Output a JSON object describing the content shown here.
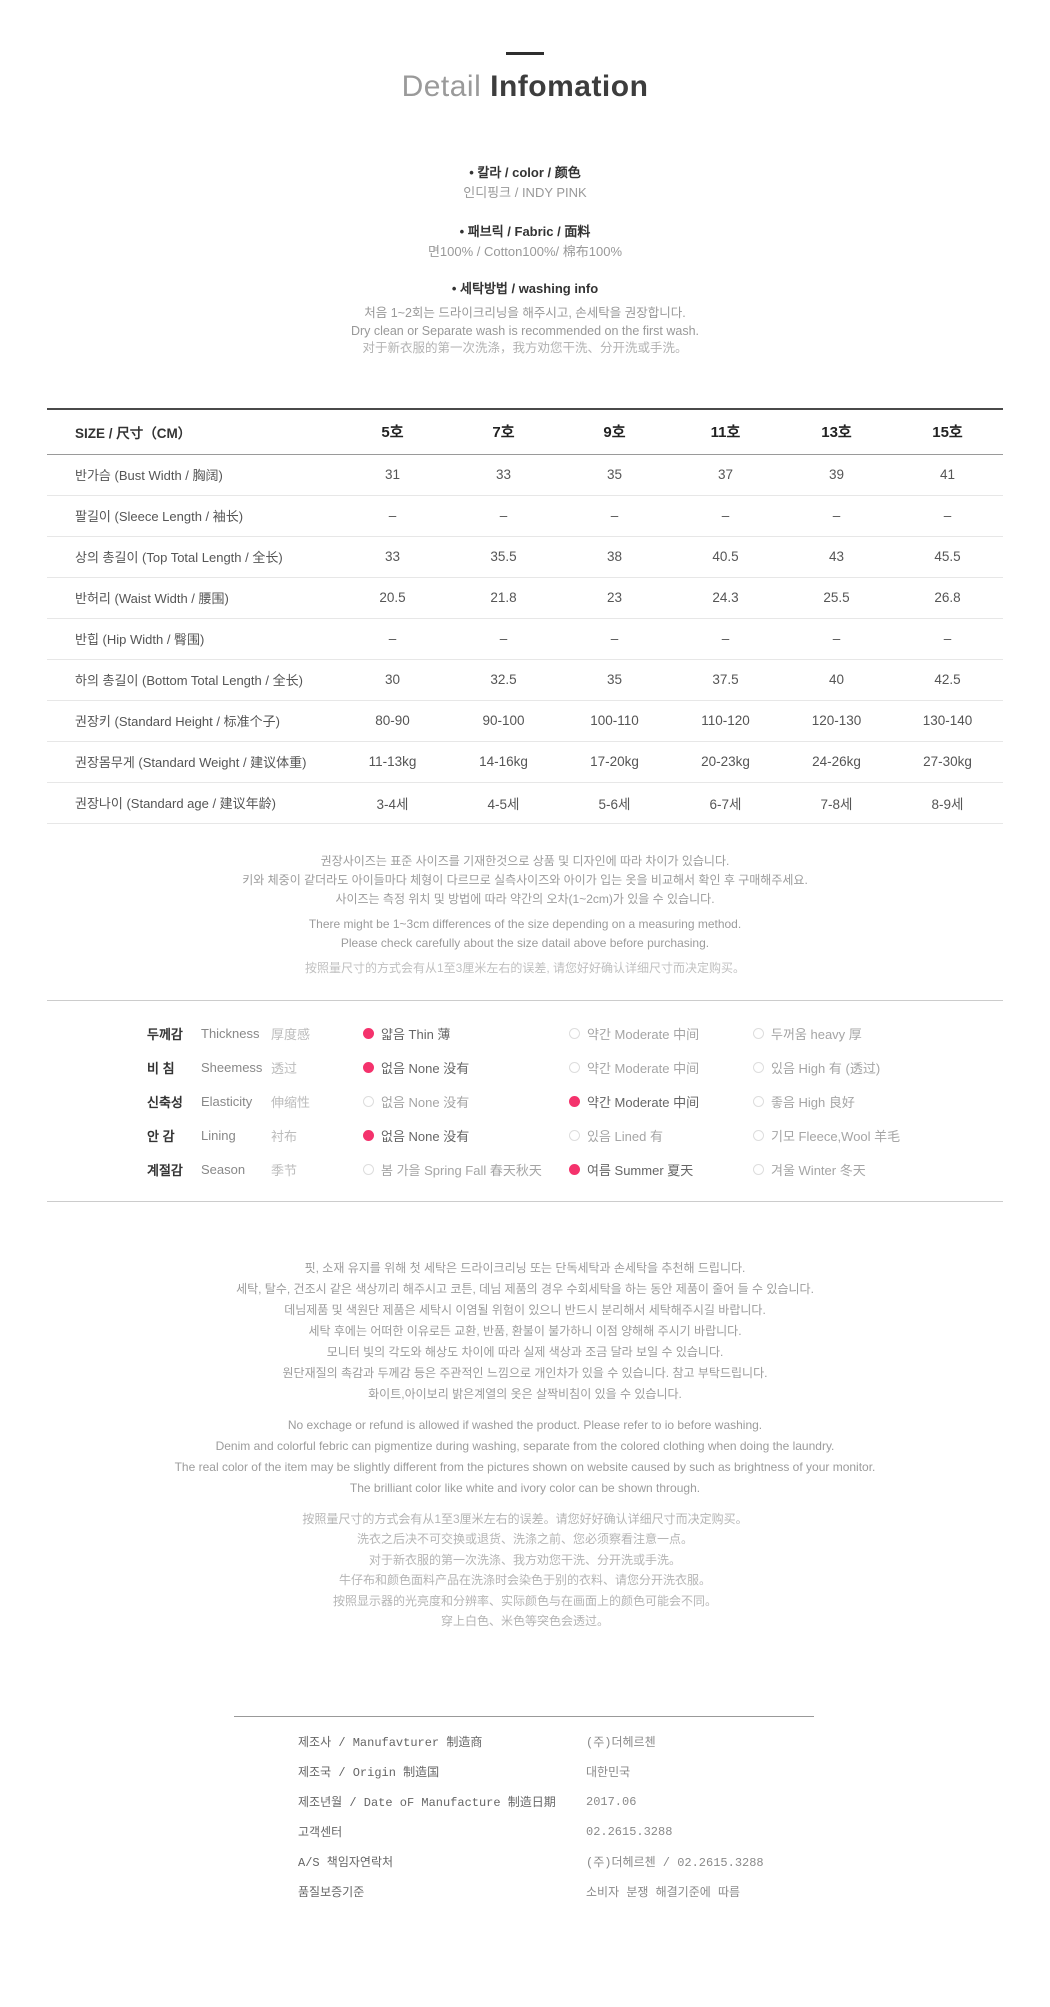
{
  "page": {
    "title_light": "Detail",
    "title_bold": "Infomation"
  },
  "info_sections": {
    "color": {
      "heading": "• 칼라 / color / 颜色",
      "value": "인디핑크 / INDY PINK"
    },
    "fabric": {
      "heading": "• 패브릭 / Fabric / 面料",
      "value": "면100% /  Cotton100%/ 棉布100%"
    },
    "washing": {
      "heading": "• 세탁방법 / washing info",
      "lines": [
        "처음 1~2회는 드라이크리닝을 해주시고, 손세탁을 권장합니다.",
        "Dry clean or Separate wash is recommended on the first wash.",
        "对于新衣服的第一次洗涤，我方劝您干洗、分开洗或手洗。"
      ]
    }
  },
  "size_table": {
    "header_label": "SIZE / 尺寸（CM）",
    "columns": [
      "5호",
      "7호",
      "9호",
      "11호",
      "13호",
      "15호"
    ],
    "rows": [
      {
        "label": "반가슴 (Bust Width / 胸阔)",
        "values": [
          "31",
          "33",
          "35",
          "37",
          "39",
          "41"
        ]
      },
      {
        "label": "팔길이 (Sleece Length / 袖长)",
        "values": [
          "–",
          "–",
          "–",
          "–",
          "–",
          "–"
        ]
      },
      {
        "label": "상의 총길이 (Top Total Length / 全长)",
        "values": [
          "33",
          "35.5",
          "38",
          "40.5",
          "43",
          "45.5"
        ]
      },
      {
        "label": "반허리 (Waist Width / 腰围)",
        "values": [
          "20.5",
          "21.8",
          "23",
          "24.3",
          "25.5",
          "26.8"
        ]
      },
      {
        "label": "반힙 (Hip Width / 臀围)",
        "values": [
          "–",
          "–",
          "–",
          "–",
          "–",
          "–"
        ]
      },
      {
        "label": "하의 총길이 (Bottom Total Length / 全长)",
        "values": [
          "30",
          "32.5",
          "35",
          "37.5",
          "40",
          "42.5"
        ]
      },
      {
        "label": "권장키 (Standard Height / 标准个子)",
        "values": [
          "80-90",
          "90-100",
          "100-110",
          "110-120",
          "120-130",
          "130-140"
        ]
      },
      {
        "label": "권장몸무게 (Standard Weight / 建议体重)",
        "values": [
          "11-13kg",
          "14-16kg",
          "17-20kg",
          "20-23kg",
          "24-26kg",
          "27-30kg"
        ]
      },
      {
        "label": "권장나이 (Standard  age / 建议年龄)",
        "values": [
          "3-4세",
          "4-5세",
          "5-6세",
          "6-7세",
          "7-8세",
          "8-9세"
        ]
      }
    ]
  },
  "size_notes": {
    "kr": [
      "권장사이즈는 표준 사이즈를 기재한것으로 상품 및 디자인에 따라 차이가 있습니다.",
      "키와 체중이 같더라도 아이들마다 체형이 다르므로 실측사이즈와 아이가 입는 옷을 비교해서 확인 후 구매해주세요.",
      "사이즈는 측정 위치 및 방법에 따라 약간의 오차(1~2cm)가 있을 수 있습니다."
    ],
    "en": [
      "There might be 1~3cm differences of the size depending on a measuring method.",
      "Please check carefully about the size datail above before purchasing."
    ],
    "cn": [
      "按照量尺寸的方式会有从1至3厘米左右的误差, 请您好好确认详细尺寸而决定购买。"
    ]
  },
  "attributes": {
    "accent_color": "#f4326c",
    "rows": [
      {
        "kr": "두께감",
        "en": "Thickness",
        "cn": "厚度感",
        "options": [
          {
            "label": "얇음  Thin 薄",
            "selected": true
          },
          {
            "label": "약간  Moderate 中间",
            "selected": false
          },
          {
            "label": "두꺼움  heavy 厚",
            "selected": false
          }
        ]
      },
      {
        "kr": "비 침",
        "en": "Sheemess",
        "cn": "透过",
        "options": [
          {
            "label": "없음  None 没有",
            "selected": true
          },
          {
            "label": "약간  Moderate 中间",
            "selected": false
          },
          {
            "label": "있음  High 有 (透过)",
            "selected": false
          }
        ]
      },
      {
        "kr": "신축성",
        "en": "Elasticity",
        "cn": "伸缩性",
        "options": [
          {
            "label": "없음  None 没有",
            "selected": false
          },
          {
            "label": "약간  Moderate 中间",
            "selected": true
          },
          {
            "label": "좋음  High 良好",
            "selected": false
          }
        ]
      },
      {
        "kr": "안 감",
        "en": "Lining",
        "cn": "衬布",
        "options": [
          {
            "label": "없음  None 没有",
            "selected": true
          },
          {
            "label": "있음  Lined 有",
            "selected": false
          },
          {
            "label": "기모  Fleece,Wool 羊毛",
            "selected": false
          }
        ]
      },
      {
        "kr": "계절감",
        "en": "Season",
        "cn": "季节",
        "options": [
          {
            "label": "봄 가을  Spring Fall 春天秋天",
            "selected": false
          },
          {
            "label": "여름  Summer 夏天",
            "selected": true
          },
          {
            "label": "겨울  Winter 冬天",
            "selected": false
          }
        ]
      }
    ]
  },
  "care_notes": {
    "kr": [
      "핏, 소재 유지를 위해 첫 세탁은 드라이크리닝 또는 단독세탁과 손세탁을 추천해 드립니다.",
      "세탁, 탈수, 건조시 같은 색상끼리 해주시고 코튼, 데님 제품의 경우 수회세탁을 하는 동안 제품이 줄어 들 수 있습니다.",
      "데님제품 및 색원단 제품은 세탁시 이염될 위험이 있으니 반드시 분리해서 세탁해주시길 바랍니다.",
      "세탁 후에는 어떠한 이유로든 교환, 반품, 환불이 불가하니 이점 양해해 주시기 바랍니다.",
      "모니터 빛의 각도와 해상도 차이에 따라 실제 색상과 조금 달라 보일 수 있습니다.",
      "원단재질의 촉감과 두께감 등은 주관적인 느낌으로 개인차가 있을 수 있습니다. 참고 부탁드립니다.",
      "화이트,아이보리 밝은계열의 옷은 살짝비침이 있을 수 있습니다."
    ],
    "en": [
      "No exchage or refund is allowed if washed the product. Please refer to io before washing.",
      "Denim and colorful febric can pigmentize during washing, separate from the colored clothing when doing the laundry.",
      "The real color of the item may be slightly different from the pictures shown on website caused by such as brightness of your monitor.",
      "The brilliant color like white and ivory color can be shown through."
    ],
    "cn": [
      "按照量尺寸的方式会有从1至3厘米左右的误差。请您好好确认详细尺寸而决定购买。",
      "洗衣之后决不可交换或退货、洗涤之前、您必须察看注意一点。",
      "对于新衣服的第一次洗涤、我方劝您干洗、分开洗或手洗。",
      "牛仔布和颜色面料产品在洗涤时会染色于别的衣料、请您分开洗衣服。",
      "按照显示器的光亮度和分辨率、实际颜色与在画面上的颜色可能会不同。",
      "穿上白色、米色等突色会透过。"
    ]
  },
  "manufacturer": {
    "rows": [
      {
        "label": "제조사 / Manufavturer 制造商",
        "value": "(주)더헤르첸"
      },
      {
        "label": "제조국 / Origin 制造国",
        "value": "대한민국"
      },
      {
        "label": "제조년월 / Date oF Manufacture 制造日期",
        "value": "2017.06"
      },
      {
        "label": "고객센터",
        "value": "02.2615.3288"
      },
      {
        "label": "A/S 책임자연락처",
        "value": "(주)더헤르첸 / 02.2615.3288"
      },
      {
        "label": "품질보증기준",
        "value": "소비자 분쟁 해결기준에 따름"
      }
    ]
  }
}
